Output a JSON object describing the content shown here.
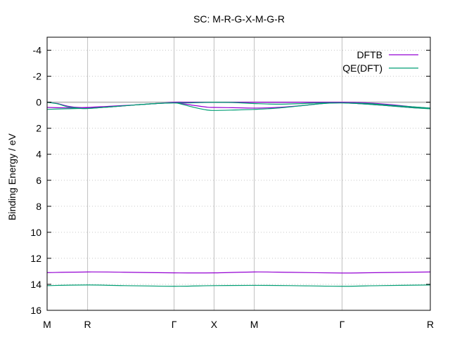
{
  "chart_data": {
    "type": "line",
    "title": "SC: M-R-G-X-M-G-R",
    "xlabel": "",
    "ylabel": "Binding Energy / eV",
    "ylim": [
      16,
      -5
    ],
    "yticks": [
      -4,
      -2,
      0,
      2,
      4,
      6,
      8,
      10,
      12,
      14,
      16
    ],
    "xlim": [
      0,
      2.991
    ],
    "kpoints": [
      {
        "label": "M",
        "x": 0
      },
      {
        "label": "R",
        "x": 0.316
      },
      {
        "label": "Γ",
        "x": 0.991
      },
      {
        "label": "X",
        "x": 1.303
      },
      {
        "label": "M",
        "x": 1.617
      },
      {
        "label": "Γ",
        "x": 2.302
      },
      {
        "label": "R",
        "x": 2.991
      }
    ],
    "grid": true,
    "legend_position": "top-right",
    "reference_line": {
      "y": 0,
      "color": "#c0c0c0"
    },
    "series": [
      {
        "name": "DFTB",
        "color": "#9400d3",
        "bands": [
          {
            "x": [
              0,
              0.08,
              0.16,
              0.24,
              0.316,
              0.5,
              0.7,
              0.85,
              0.991,
              1.1,
              1.2,
              1.303,
              1.45,
              1.617,
              1.8,
              2.0,
              2.15,
              2.302,
              2.5,
              2.7,
              2.85,
              2.991
            ],
            "y": [
              0.0,
              0.1,
              0.3,
              0.4,
              0.4,
              0.3,
              0.2,
              0.1,
              0.0,
              0.0,
              0.0,
              0.0,
              0.0,
              0.0,
              0.0,
              0.0,
              0.0,
              0.0,
              0.05,
              0.2,
              0.35,
              0.45
            ]
          },
          {
            "x": [
              0,
              0.08,
              0.16,
              0.24,
              0.316,
              0.5,
              0.7,
              0.85,
              0.991,
              1.05,
              1.15,
              1.25,
              1.303,
              1.45,
              1.617,
              1.8,
              2.0,
              2.15,
              2.302,
              2.5,
              2.7,
              2.85,
              2.991
            ],
            "y": [
              0.4,
              0.42,
              0.43,
              0.45,
              0.45,
              0.35,
              0.2,
              0.1,
              0.05,
              0.1,
              0.25,
              0.38,
              0.4,
              0.42,
              0.45,
              0.4,
              0.25,
              0.1,
              0.05,
              0.15,
              0.3,
              0.42,
              0.48
            ]
          },
          {
            "x": [
              0,
              0.316,
              0.6,
              0.991,
              1.303,
              1.617,
              1.9,
              2.302,
              2.6,
              2.991
            ],
            "y": [
              13.1,
              13.05,
              13.07,
              13.12,
              13.12,
              13.05,
              13.08,
              13.13,
              13.1,
              13.05
            ]
          }
        ]
      },
      {
        "name": "QE(DFT)",
        "color": "#009e73",
        "bands": [
          {
            "x": [
              0,
              0.08,
              0.16,
              0.24,
              0.316,
              0.5,
              0.7,
              0.85,
              0.991,
              1.1,
              1.2,
              1.303,
              1.45,
              1.617,
              1.8,
              2.0,
              2.15,
              2.302,
              2.5,
              2.7,
              2.85,
              2.991
            ],
            "y": [
              0.0,
              0.12,
              0.35,
              0.45,
              0.48,
              0.35,
              0.2,
              0.1,
              0.05,
              0.05,
              0.02,
              0.0,
              0.02,
              0.1,
              0.15,
              0.1,
              0.05,
              0.05,
              0.1,
              0.25,
              0.35,
              0.45
            ]
          },
          {
            "x": [
              0,
              0.08,
              0.16,
              0.24,
              0.316,
              0.5,
              0.7,
              0.85,
              0.991,
              1.05,
              1.15,
              1.25,
              1.303,
              1.45,
              1.617,
              1.8,
              2.0,
              2.15,
              2.302,
              2.5,
              2.7,
              2.85,
              2.991
            ],
            "y": [
              0.55,
              0.52,
              0.5,
              0.48,
              0.48,
              0.35,
              0.2,
              0.1,
              0.05,
              0.15,
              0.4,
              0.6,
              0.63,
              0.6,
              0.55,
              0.45,
              0.25,
              0.1,
              0.05,
              0.15,
              0.3,
              0.42,
              0.5
            ]
          },
          {
            "x": [
              0,
              0.316,
              0.6,
              0.991,
              1.303,
              1.617,
              1.9,
              2.302,
              2.6,
              2.991
            ],
            "y": [
              14.1,
              14.05,
              14.1,
              14.15,
              14.1,
              14.08,
              14.1,
              14.15,
              14.1,
              14.05
            ]
          }
        ]
      }
    ]
  }
}
